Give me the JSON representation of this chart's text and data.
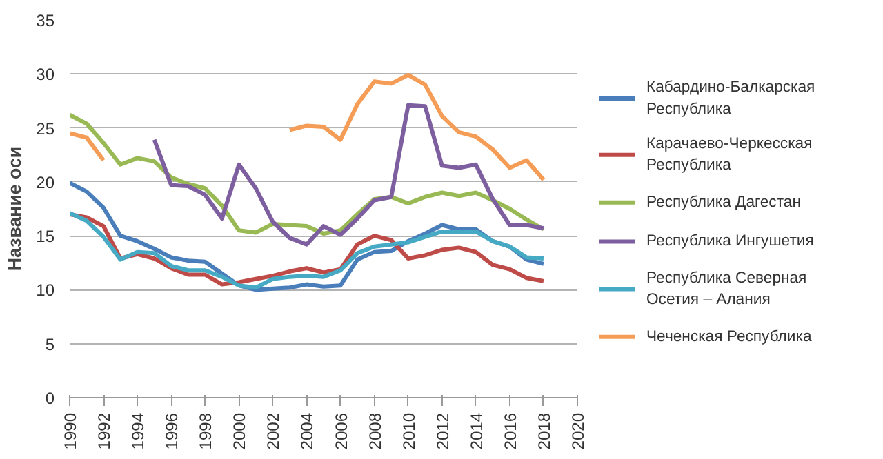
{
  "chart_data": {
    "type": "line",
    "ylabel": "Название оси",
    "x": [
      1990,
      1991,
      1992,
      1993,
      1994,
      1995,
      1996,
      1997,
      1998,
      1999,
      2000,
      2001,
      2002,
      2003,
      2004,
      2005,
      2006,
      2007,
      2008,
      2009,
      2010,
      2011,
      2012,
      2013,
      2014,
      2015,
      2016,
      2017,
      2018
    ],
    "xlim": [
      1990,
      2020
    ],
    "xticks": [
      1990,
      1992,
      1994,
      1996,
      1998,
      2000,
      2002,
      2004,
      2006,
      2008,
      2010,
      2012,
      2014,
      2016,
      2018,
      2020
    ],
    "ylim": [
      0,
      35
    ],
    "yticks": [
      0,
      5,
      10,
      15,
      20,
      25,
      30,
      35
    ],
    "grid": "y",
    "legend": "right",
    "marker": "none",
    "line_style": "solid",
    "series": [
      {
        "name": "Кабардино-Балкарская Республика",
        "color": "#4a7ebb",
        "values": [
          19.9,
          19.1,
          17.6,
          15.0,
          14.5,
          13.8,
          13.0,
          12.7,
          12.6,
          11.5,
          10.4,
          10.0,
          10.1,
          10.2,
          10.5,
          10.3,
          10.4,
          12.8,
          13.5,
          13.6,
          14.5,
          15.2,
          16.0,
          15.6,
          15.6,
          14.5,
          14.0,
          12.8,
          12.4
        ]
      },
      {
        "name": "Карачаево-Черкесская Республика",
        "color": "#be4b48",
        "values": [
          17.0,
          16.7,
          15.9,
          12.9,
          13.3,
          12.9,
          12.0,
          11.4,
          11.4,
          10.5,
          10.7,
          11.0,
          11.3,
          11.7,
          12.0,
          11.6,
          11.9,
          14.2,
          15.0,
          14.6,
          12.9,
          13.2,
          13.7,
          13.9,
          13.5,
          12.3,
          11.9,
          11.1,
          10.8
        ]
      },
      {
        "name": "Республика Дагестан",
        "color": "#98b954",
        "values": [
          26.2,
          25.4,
          23.6,
          21.6,
          22.2,
          21.9,
          20.4,
          19.8,
          19.4,
          17.8,
          15.5,
          15.3,
          16.1,
          16.0,
          15.9,
          15.2,
          15.5,
          17.0,
          18.4,
          18.6,
          18.0,
          18.6,
          19.0,
          18.7,
          19.0,
          18.3,
          17.5,
          16.5,
          15.6
        ]
      },
      {
        "name": "Республика Ингушетия",
        "color": "#7d5fa0",
        "values": [
          null,
          null,
          null,
          null,
          null,
          23.9,
          19.7,
          19.6,
          18.8,
          16.6,
          21.6,
          19.4,
          16.3,
          14.8,
          14.2,
          15.9,
          15.1,
          16.6,
          18.3,
          18.6,
          27.1,
          27.0,
          21.5,
          21.3,
          21.6,
          18.4,
          16.0,
          16.0,
          15.7
        ]
      },
      {
        "name": "Республика Северная Осетия – Алания",
        "color": "#46aac5",
        "values": [
          17.1,
          16.4,
          14.9,
          12.8,
          13.5,
          13.4,
          12.2,
          11.8,
          11.8,
          11.2,
          10.4,
          10.2,
          11.0,
          11.2,
          11.3,
          11.2,
          11.8,
          13.4,
          14.0,
          14.2,
          14.4,
          14.9,
          15.4,
          15.4,
          15.4,
          14.5,
          14.0,
          13.0,
          12.9
        ]
      },
      {
        "name": "Чеченская Республика",
        "color": "#f59d56",
        "values": [
          24.5,
          24.1,
          22.0,
          null,
          null,
          null,
          null,
          null,
          null,
          null,
          null,
          null,
          null,
          24.8,
          25.2,
          25.1,
          23.9,
          27.2,
          29.3,
          29.1,
          29.9,
          29.0,
          26.1,
          24.6,
          24.2,
          23.0,
          21.3,
          22.0,
          20.2
        ]
      }
    ]
  }
}
